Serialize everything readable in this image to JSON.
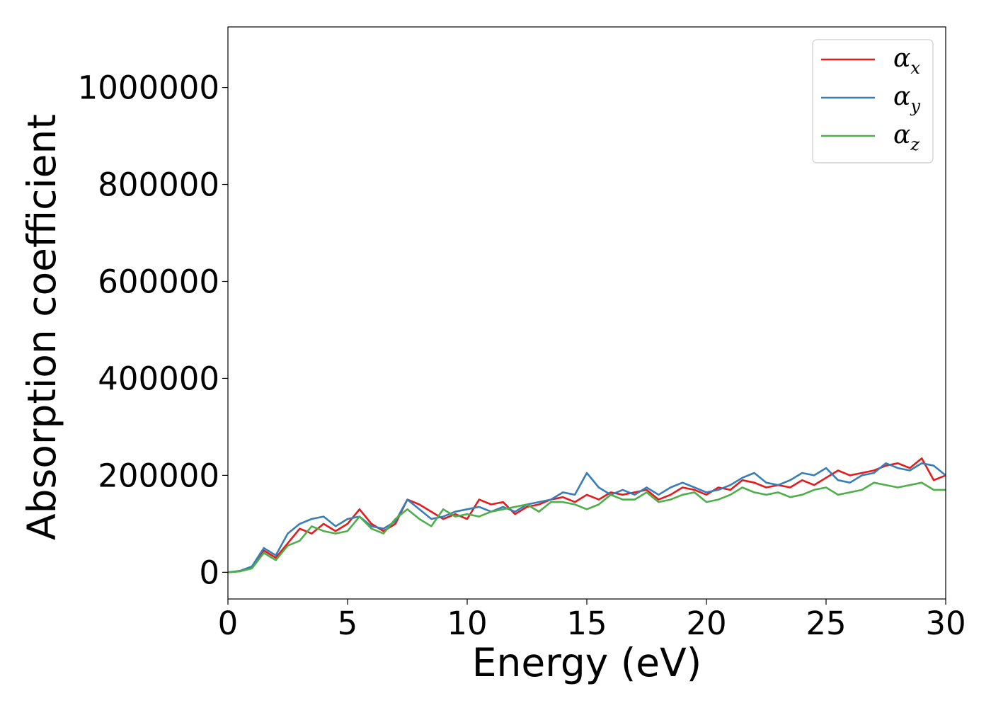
{
  "chart_data": {
    "type": "line",
    "title": "",
    "xlabel": "Energy (eV)",
    "ylabel": "Absorption coefficient",
    "xlim": [
      0,
      30
    ],
    "ylim": [
      -55000,
      1125000
    ],
    "xticks": [
      0,
      5,
      10,
      15,
      20,
      25,
      30
    ],
    "xtick_labels": [
      "0",
      "5",
      "10",
      "15",
      "20",
      "25",
      "30"
    ],
    "yticks": [
      0,
      200000,
      400000,
      600000,
      800000,
      1000000
    ],
    "ytick_labels": [
      "0",
      "200000",
      "400000",
      "600000",
      "800000",
      "1000000"
    ],
    "grid": false,
    "legend_position": "top-right",
    "x": [
      0,
      0.5,
      1,
      1.5,
      2,
      2.5,
      3,
      3.5,
      4,
      4.5,
      5,
      5.5,
      6,
      6.5,
      7,
      7.5,
      8,
      8.5,
      9,
      9.5,
      10,
      10.5,
      11,
      11.5,
      12,
      12.5,
      13,
      13.5,
      14,
      14.5,
      15,
      15.5,
      16,
      16.5,
      17,
      17.5,
      18,
      18.5,
      19,
      19.5,
      20,
      20.5,
      21,
      21.5,
      22,
      22.5,
      23,
      23.5,
      24,
      24.5,
      25,
      25.5,
      26,
      26.5,
      27,
      27.5,
      28,
      28.5,
      29,
      29.5,
      30
    ],
    "series": [
      {
        "name": "α",
        "subscript": "x",
        "color": "#e41a1c",
        "values": [
          0,
          2000,
          10000,
          45000,
          30000,
          60000,
          90000,
          80000,
          100000,
          85000,
          100000,
          130000,
          100000,
          85000,
          100000,
          150000,
          140000,
          125000,
          110000,
          120000,
          110000,
          150000,
          140000,
          145000,
          120000,
          135000,
          140000,
          150000,
          155000,
          145000,
          160000,
          150000,
          165000,
          160000,
          165000,
          170000,
          150000,
          160000,
          175000,
          170000,
          160000,
          175000,
          170000,
          190000,
          185000,
          175000,
          180000,
          175000,
          190000,
          180000,
          195000,
          210000,
          200000,
          205000,
          210000,
          220000,
          225000,
          215000,
          235000,
          190000,
          200000
        ]
      },
      {
        "name": "α",
        "subscript": "y",
        "color": "#377eb8",
        "values": [
          0,
          3000,
          12000,
          50000,
          35000,
          80000,
          100000,
          110000,
          115000,
          95000,
          110000,
          115000,
          95000,
          90000,
          105000,
          150000,
          130000,
          110000,
          115000,
          125000,
          130000,
          135000,
          125000,
          135000,
          125000,
          140000,
          145000,
          150000,
          165000,
          160000,
          205000,
          175000,
          160000,
          170000,
          160000,
          175000,
          160000,
          175000,
          185000,
          175000,
          165000,
          170000,
          180000,
          195000,
          205000,
          185000,
          180000,
          190000,
          205000,
          200000,
          215000,
          190000,
          185000,
          200000,
          205000,
          225000,
          215000,
          210000,
          225000,
          220000,
          200000
        ]
      },
      {
        "name": "α",
        "subscript": "z",
        "color": "#4daf4a",
        "values": [
          0,
          2000,
          8000,
          40000,
          25000,
          55000,
          65000,
          95000,
          85000,
          80000,
          85000,
          115000,
          90000,
          80000,
          110000,
          130000,
          110000,
          95000,
          130000,
          115000,
          120000,
          115000,
          125000,
          130000,
          135000,
          140000,
          125000,
          145000,
          145000,
          140000,
          130000,
          140000,
          160000,
          150000,
          150000,
          165000,
          145000,
          150000,
          160000,
          165000,
          145000,
          150000,
          160000,
          175000,
          165000,
          160000,
          165000,
          155000,
          160000,
          170000,
          175000,
          160000,
          165000,
          170000,
          185000,
          180000,
          175000,
          180000,
          185000,
          170000,
          170000
        ]
      }
    ]
  }
}
